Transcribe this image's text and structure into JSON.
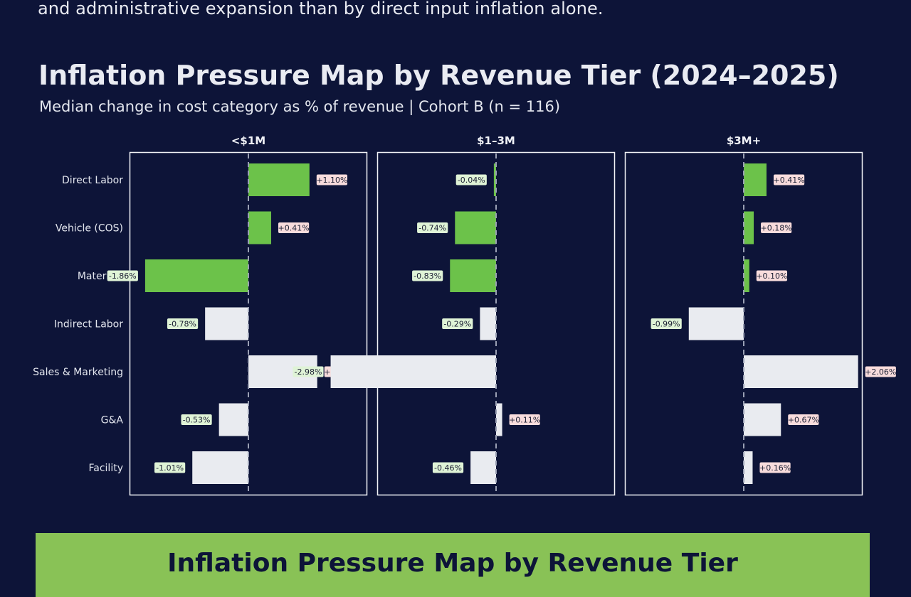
{
  "intro": {
    "text": "and administrative expansion than by direct input inflation alone."
  },
  "colors": {
    "background": "#0d1438",
    "green_bar": "#6cc24a",
    "white_bar": "#e9ebf0",
    "negative_label_bg": "#dff3d6",
    "positive_label_bg": "#f8dcdc",
    "card_bg": "#89c256"
  },
  "chart_data": {
    "type": "bar",
    "orientation": "horizontal",
    "title": "Inflation Pressure Map by Revenue Tier (2024–2025)",
    "subtitle": "Median change in cost category as % of revenue | Cohort B (n = 116)",
    "categories": [
      "Direct Labor",
      "Vehicle (COS)",
      "Materials",
      "Indirect Labor",
      "Sales & Marketing",
      "G&A",
      "Facility"
    ],
    "highlight_categories": [
      "Direct Labor",
      "Vehicle (COS)",
      "Materials"
    ],
    "series": [
      {
        "name": "<$1M",
        "values": [
          1.1,
          0.41,
          -1.86,
          -0.78,
          1.24,
          -0.53,
          -1.01
        ]
      },
      {
        "name": "$1–3M",
        "values": [
          -0.04,
          -0.74,
          -0.83,
          -0.29,
          -2.98,
          0.11,
          -0.46
        ]
      },
      {
        "name": "$3M+",
        "values": [
          0.41,
          0.18,
          0.1,
          -0.99,
          2.06,
          0.67,
          0.16
        ]
      }
    ],
    "labels": [
      [
        "+1.10%",
        "+0.41%",
        "-1.86%",
        "-0.78%",
        "+1.24%",
        "-0.53%",
        "-1.01%"
      ],
      [
        "-0.04%",
        "-0.74%",
        "-0.83%",
        "-0.29%",
        "-2.98%",
        "+0.11%",
        "-0.46%"
      ],
      [
        "+0.41%",
        "+0.18%",
        "+0.10%",
        "-0.99%",
        "+2.06%",
        "+0.67%",
        "+0.16%"
      ]
    ],
    "xlim": [
      -3.6,
      3.6
    ],
    "zero_line": "dashed",
    "grid": false
  },
  "bottom_card": {
    "title": "Inflation Pressure Map by Revenue Tier"
  }
}
